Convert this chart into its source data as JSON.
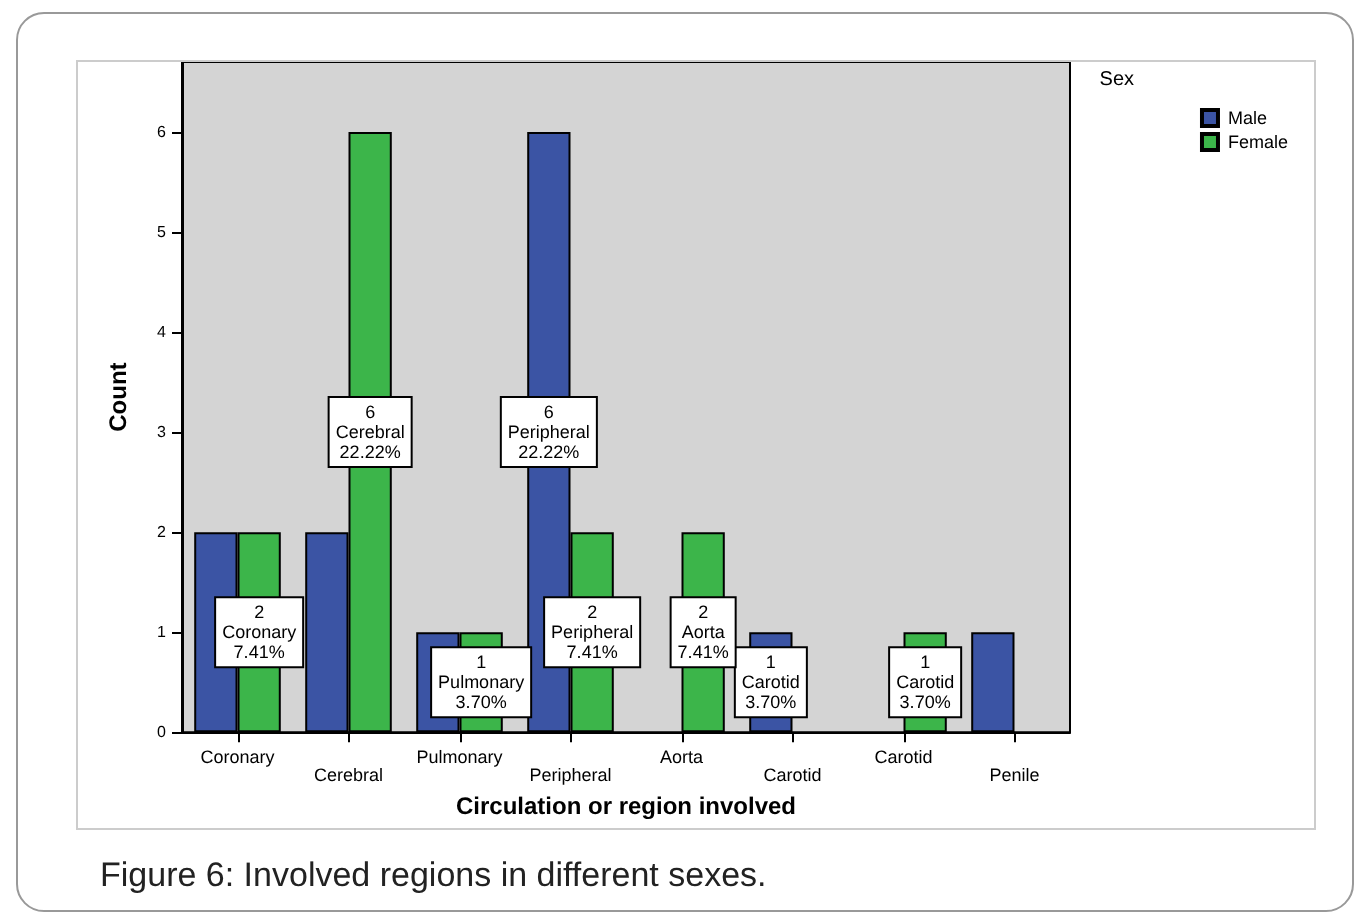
{
  "chart_data": {
    "type": "bar",
    "categories": [
      "Coronary",
      "Cerebral",
      "Pulmonary",
      "Peripheral",
      "Aorta",
      "Carotid",
      "Carotid",
      "Penile"
    ],
    "series": [
      {
        "name": "Male",
        "color": "#3b54a4",
        "values": [
          2,
          2,
          1,
          6,
          null,
          1,
          null,
          1
        ],
        "value_labels": [
          null,
          null,
          null,
          "6\nPeripheral\n22.22%",
          null,
          "1\nCarotid\n3.70%",
          null,
          null
        ]
      },
      {
        "name": "Female",
        "color": "#3cb54a",
        "values": [
          2,
          6,
          1,
          2,
          2,
          null,
          1,
          null
        ],
        "value_labels": [
          "2\nCoronary\n7.41%",
          "6\nCerebral\n22.22%",
          "1\nPulmonary\n3.70%",
          "2\nPeripheral\n7.41%",
          "2\nAorta\n7.41%",
          null,
          "1\nCarotid\n3.70%",
          null
        ]
      }
    ],
    "xlabel": "Circulation or region involved",
    "ylabel": "Count",
    "legend_title": "Sex",
    "ylim": [
      0,
      6.7
    ],
    "yticks": [
      0,
      1,
      2,
      3,
      4,
      5,
      6
    ],
    "grid": false,
    "legend": "top right",
    "annotations": [
      "Figure 6: Involved regions in different sexes."
    ]
  }
}
